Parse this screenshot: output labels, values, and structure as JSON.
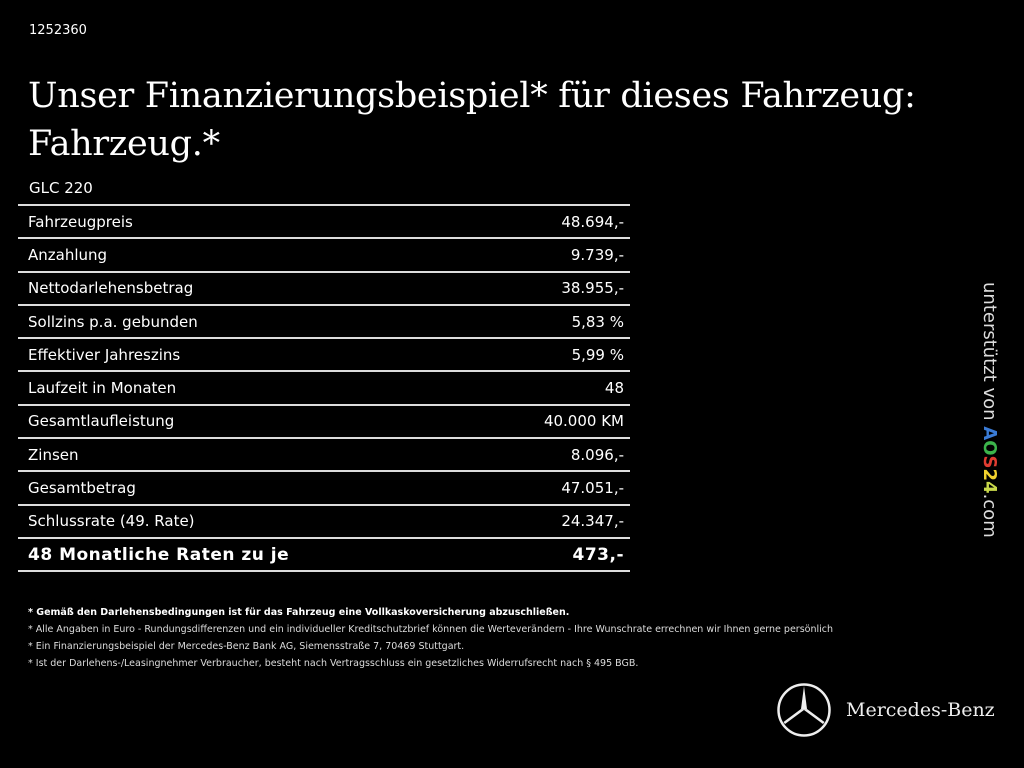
{
  "id": "1252360",
  "title": "Unser Finanzierungsbeispiel* für dieses Fahrzeug: Fahrzeug.*",
  "model": "GLC 220",
  "rows": [
    {
      "label": "Fahrzeugpreis",
      "value": "48.694,-"
    },
    {
      "label": "Anzahlung",
      "value": "9.739,-"
    },
    {
      "label": "Nettodarlehensbetrag",
      "value": "38.955,-"
    },
    {
      "label": "Sollzins p.a. gebunden",
      "value": "5,83 %"
    },
    {
      "label": "Effektiver Jahreszins",
      "value": "5,99 %"
    },
    {
      "label": "Laufzeit in Monaten",
      "value": "48"
    },
    {
      "label": "Gesamtlaufleistung",
      "value": "40.000 KM"
    },
    {
      "label": "Zinsen",
      "value": "8.096,-"
    },
    {
      "label": "Gesamtbetrag",
      "value": "47.051,-"
    },
    {
      "label": "Schlussrate (49. Rate)",
      "value": "24.347,-"
    }
  ],
  "total": {
    "label": "48 Monatliche Raten zu je",
    "value": "473,-"
  },
  "notes": [
    "* Gemäß den Darlehensbedingungen ist für das Fahrzeug eine Vollkaskoversicherung abzuschließen.",
    "* Alle Angaben in Euro - Rundungsdifferenzen und ein individueller Kreditschutzbrief können die Werteverändern - Ihre Wunschrate errechnen wir Ihnen gerne persönlich",
    "* Ein Finanzierungsbeispiel der Mercedes-Benz Bank AG, Siemensstraße 7, 70469 Stuttgart.",
    "* Ist der Darlehens-/Leasingnehmer Verbraucher, besteht nach Vertragsschluss ein gesetzliches Widerrufsrecht nach § 495 BGB."
  ],
  "sponsor": {
    "prefix": "unterstützt von ",
    "letters": [
      "A",
      "O",
      "S",
      "2",
      "4"
    ],
    "colors": [
      "#3a7bd5",
      "#3cb44b",
      "#e03c31",
      "#f2d12e",
      "#c8d84a"
    ],
    "suffix": ".com"
  },
  "brand": {
    "name": "Mercedes-Benz",
    "icon": "mercedes-star-icon"
  }
}
